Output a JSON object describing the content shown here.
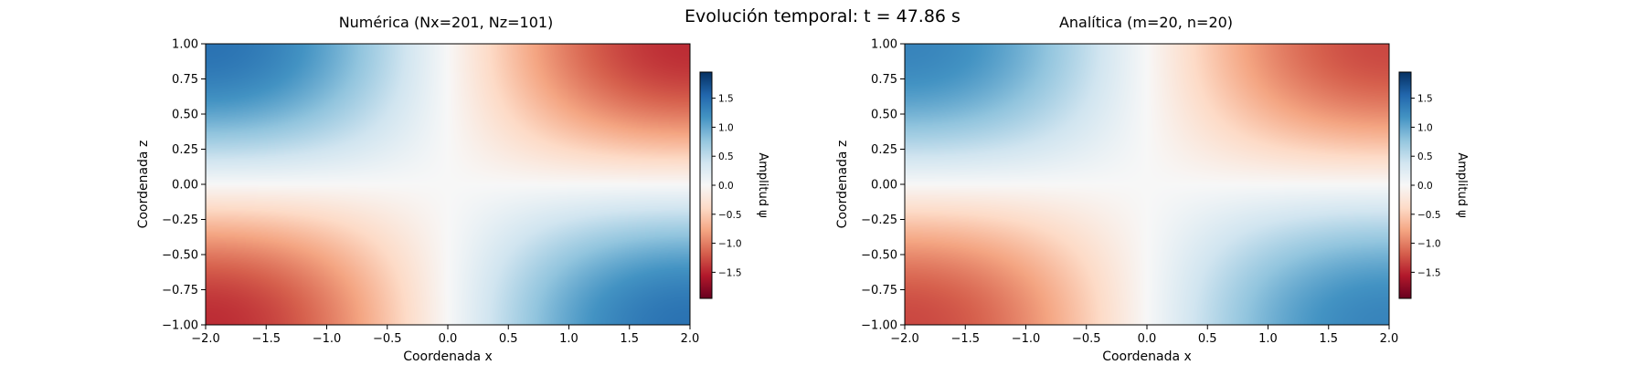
{
  "figure": {
    "suptitle": "Evolución temporal: t = 47.86 s"
  },
  "colors": {
    "cmap": "RdBu",
    "neg": [
      "#67001f",
      "#b2182b",
      "#d6604d",
      "#f4a582",
      "#fddbc7"
    ],
    "mid": "#f7f7f7",
    "pos": [
      "#d1e5f0",
      "#92c5de",
      "#4393c3",
      "#2166ac",
      "#053061"
    ]
  },
  "chart_data": [
    {
      "type": "heatmap",
      "title": "Numérica (Nx=201, Nz=101)",
      "xlabel": "Coordenada x",
      "ylabel": "Coordenada z",
      "xlim": [
        -2.0,
        2.0
      ],
      "ylim": [
        -1.0,
        1.0
      ],
      "xticks": [
        -2.0,
        -1.5,
        -1.0,
        -0.5,
        0.0,
        0.5,
        1.0,
        1.5,
        2.0
      ],
      "xtick_labels": [
        "−2.0",
        "−1.5",
        "−1.0",
        "−0.5",
        "0.0",
        "0.5",
        "1.0",
        "1.5",
        "2.0"
      ],
      "yticks": [
        1.0,
        0.75,
        0.5,
        0.25,
        0.0,
        -0.25,
        -0.5,
        -0.75,
        -1.0
      ],
      "ytick_labels": [
        "1.00",
        "0.75",
        "0.50",
        "0.25",
        "0.00",
        "−0.25",
        "−0.50",
        "−0.75",
        "−1.00"
      ],
      "field": "psi ≈ -1.45·sin(πx/4)·sin(πz/2)",
      "amplitude": 1.45,
      "grid": false,
      "colorbar": {
        "label": "Amplitud ψ",
        "vmin": -1.95,
        "vmax": 1.95,
        "ticks": [
          1.5,
          1.0,
          0.5,
          0.0,
          -0.5,
          -1.0,
          -1.5
        ],
        "tick_labels": [
          "1.5",
          "1.0",
          "0.5",
          "0.0",
          "−0.5",
          "−1.0",
          "−1.5"
        ]
      }
    },
    {
      "type": "heatmap",
      "title": "Analítica (m=20, n=20)",
      "xlabel": "Coordenada x",
      "ylabel": "Coordenada z",
      "xlim": [
        -2.0,
        2.0
      ],
      "ylim": [
        -1.0,
        1.0
      ],
      "xticks": [
        -2.0,
        -1.5,
        -1.0,
        -0.5,
        0.0,
        0.5,
        1.0,
        1.5,
        2.0
      ],
      "xtick_labels": [
        "−2.0",
        "−1.5",
        "−1.0",
        "−0.5",
        "0.0",
        "0.5",
        "1.0",
        "1.5",
        "2.0"
      ],
      "yticks": [
        1.0,
        0.75,
        0.5,
        0.25,
        0.0,
        -0.25,
        -0.5,
        -0.75,
        -1.0
      ],
      "ytick_labels": [
        "1.00",
        "0.75",
        "0.50",
        "0.25",
        "0.00",
        "−0.25",
        "−0.50",
        "−0.75",
        "−1.00"
      ],
      "field": "psi ≈ -1.3·sin(πx/4)·sin(πz/2)",
      "amplitude": 1.3,
      "grid": false,
      "colorbar": {
        "label": "Amplitud ψ",
        "vmin": -1.95,
        "vmax": 1.95,
        "ticks": [
          1.5,
          1.0,
          0.5,
          0.0,
          -0.5,
          -1.0,
          -1.5
        ],
        "tick_labels": [
          "1.5",
          "1.0",
          "0.5",
          "0.0",
          "−0.5",
          "−1.0",
          "−1.5"
        ]
      }
    }
  ]
}
